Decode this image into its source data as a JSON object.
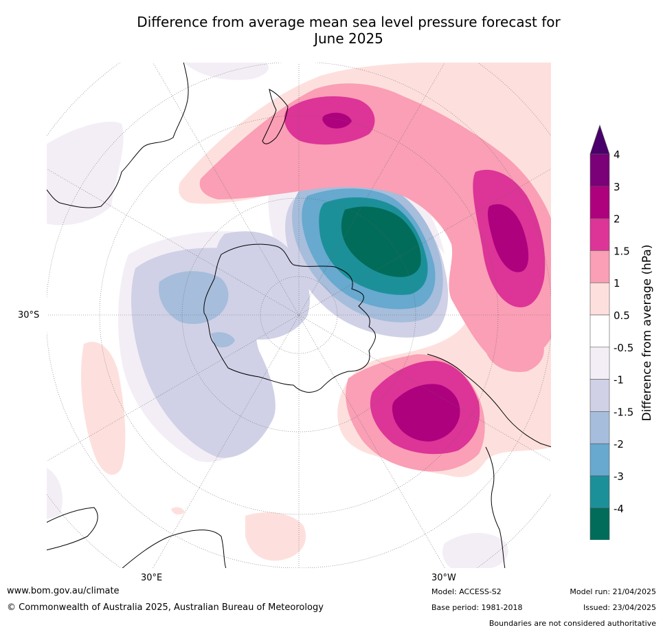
{
  "title": {
    "line1": "Difference from average mean sea level pressure forecast for",
    "line2": "June 2025"
  },
  "map": {
    "projection": "south-polar-stereographic",
    "lat_label": "30°S",
    "lon_labels": [
      "30°E",
      "30°W"
    ],
    "land_outline_color": "#000000",
    "graticule_color": "#666666"
  },
  "colorbar": {
    "label": "Difference from average (hPa)",
    "tick_labels": [
      "4",
      "3",
      "2",
      "1.5",
      "1",
      "0.5",
      "-0.5",
      "-1",
      "-1.5",
      "-2",
      "-3",
      "-4"
    ],
    "colors": [
      "#7a0177",
      "#ae017e",
      "#dd3497",
      "#fa9fb5",
      "#fde0dd",
      "#ffffff",
      "#f3eef6",
      "#d0d1e6",
      "#a6bddb",
      "#67a9cf",
      "#1c9099",
      "#016c59"
    ],
    "over_color": "#49006a",
    "under_color": "#016450"
  },
  "footer": {
    "url": "www.bom.gov.au/climate",
    "copyright": "© Commonwealth of Australia 2025, Australian Bureau of Meteorology",
    "model": "Model: ACCESS-S2",
    "base_period": "Base period: 1981-2018",
    "model_run": "Model run: 21/04/2025",
    "issued": "Issued: 23/04/2025",
    "disclaimer": "Boundaries are not considered authoritative"
  }
}
